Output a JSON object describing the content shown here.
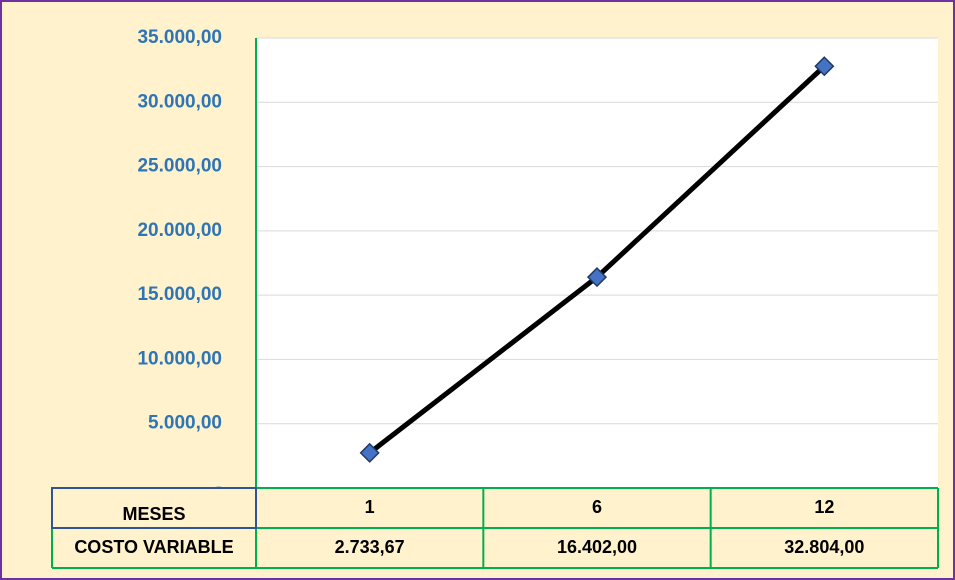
{
  "chart_data": {
    "type": "line",
    "x_label": "MESES",
    "categories": [
      "1",
      "6",
      "12"
    ],
    "series": [
      {
        "name": "COSTO VARIABLE",
        "color": "#000000",
        "marker_color": "#4472c4",
        "values": [
          2733.67,
          16402.0,
          32804.0
        ],
        "value_labels": [
          "2.733,67",
          "16.402,00",
          "32.804,00"
        ]
      }
    ],
    "ylim": [
      0,
      35000
    ],
    "yticks": [
      {
        "value": 0,
        "label": "-"
      },
      {
        "value": 5000,
        "label": "5.000,00"
      },
      {
        "value": 10000,
        "label": "10.000,00"
      },
      {
        "value": 15000,
        "label": "15.000,00"
      },
      {
        "value": 20000,
        "label": "20.000,00"
      },
      {
        "value": 25000,
        "label": "25.000,00"
      },
      {
        "value": 30000,
        "label": "30.000,00"
      },
      {
        "value": 35000,
        "label": "35.000,00"
      }
    ],
    "grid": true
  }
}
